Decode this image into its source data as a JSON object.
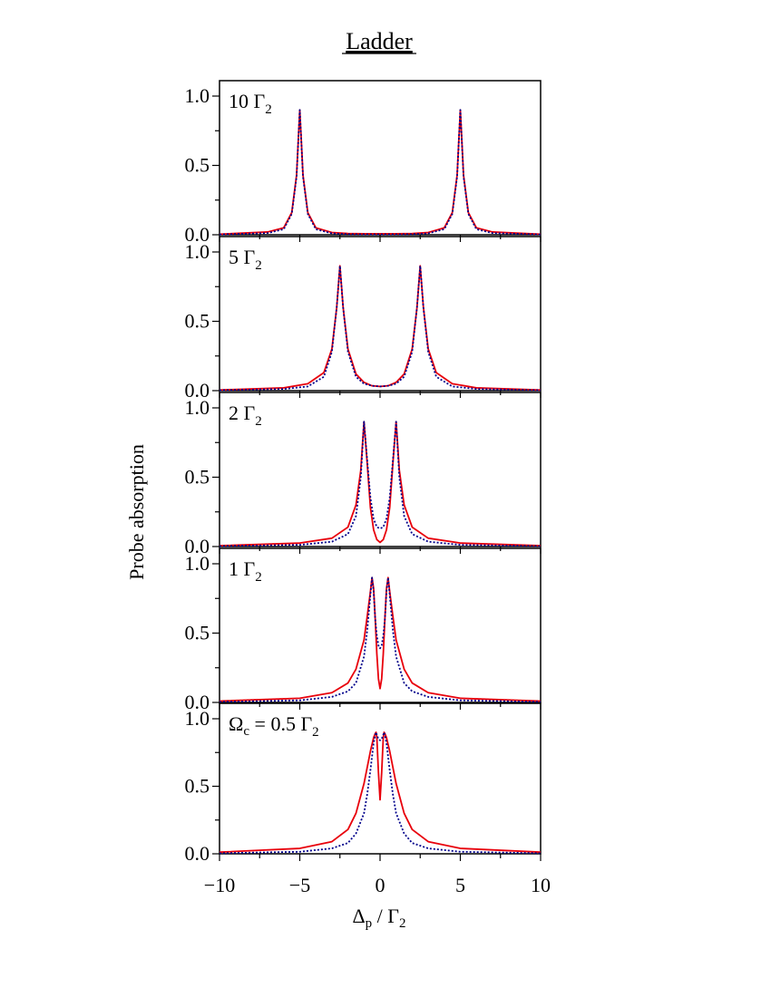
{
  "figure": {
    "title": "Ladder",
    "xlabel_main": "Δ",
    "xlabel_sub": "p",
    "xlabel_rest": " / Γ",
    "xlabel_sub2": "2",
    "ylabel": "Probe absorption"
  },
  "chart_data": {
    "type": "line",
    "title": "Ladder",
    "xlabel": "Δp / Γ2",
    "ylabel": "Probe absorption",
    "xlim": [
      -10,
      10
    ],
    "ylim": [
      0,
      1.0
    ],
    "x_ticks": [
      -10,
      -5,
      0,
      5,
      10
    ],
    "x_tick_labels": [
      "−10",
      "−5",
      "0",
      "5",
      "10"
    ],
    "y_ticks": [
      0.0,
      0.5,
      1.0
    ],
    "y_tick_labels": [
      "0.0",
      "0.5",
      "1.0"
    ],
    "grid": false,
    "series_styles": [
      {
        "color": "#e8000b",
        "style": "solid"
      },
      {
        "color": "#00008b",
        "style": "dotted"
      }
    ],
    "panels": [
      {
        "label_prefix": "",
        "label_value": "10 Γ",
        "label_sub": "2",
        "omega_c": 10,
        "series": [
          {
            "x": [
              -10,
              -7,
              -6,
              -5.5,
              -5.2,
              -5,
              -4.8,
              -4.5,
              -4,
              -3,
              -2,
              -1,
              0,
              1,
              2,
              3,
              4,
              4.5,
              4.8,
              5,
              5.2,
              5.5,
              6,
              7,
              10
            ],
            "y": [
              0.004,
              0.02,
              0.05,
              0.16,
              0.43,
              0.9,
              0.43,
              0.16,
              0.05,
              0.016,
              0.009,
              0.007,
              0.007,
              0.007,
              0.009,
              0.016,
              0.05,
              0.16,
              0.43,
              0.9,
              0.43,
              0.16,
              0.05,
              0.02,
              0.004
            ]
          },
          {
            "x": [
              -10,
              -7,
              -6,
              -5.5,
              -5.2,
              -5,
              -4.8,
              -4.5,
              -4,
              -3,
              -2,
              -1,
              0,
              1,
              2,
              3,
              4,
              4.5,
              4.8,
              5,
              5.2,
              5.5,
              6,
              7,
              10
            ],
            "y": [
              0.002,
              0.012,
              0.04,
              0.15,
              0.42,
              0.9,
              0.42,
              0.15,
              0.04,
              0.01,
              0.004,
              0.003,
              0.003,
              0.003,
              0.004,
              0.01,
              0.04,
              0.15,
              0.42,
              0.9,
              0.42,
              0.15,
              0.04,
              0.012,
              0.002
            ]
          }
        ]
      },
      {
        "label_prefix": "",
        "label_value": "5 Γ",
        "label_sub": "2",
        "omega_c": 5,
        "series": [
          {
            "x": [
              -10,
              -6,
              -4.5,
              -3.5,
              -3,
              -2.7,
              -2.5,
              -2.3,
              -2,
              -1.5,
              -1,
              -0.5,
              0,
              0.5,
              1,
              1.5,
              2,
              2.3,
              2.5,
              2.7,
              3,
              3.5,
              4.5,
              6,
              10
            ],
            "y": [
              0.005,
              0.02,
              0.05,
              0.13,
              0.3,
              0.6,
              0.9,
              0.6,
              0.3,
              0.12,
              0.06,
              0.035,
              0.03,
              0.035,
              0.06,
              0.12,
              0.3,
              0.6,
              0.9,
              0.6,
              0.3,
              0.13,
              0.05,
              0.02,
              0.005
            ]
          },
          {
            "x": [
              -10,
              -6,
              -4.5,
              -3.5,
              -3,
              -2.7,
              -2.5,
              -2.3,
              -2,
              -1.5,
              -1,
              -0.5,
              0,
              0.5,
              1,
              1.5,
              2,
              2.3,
              2.5,
              2.7,
              3,
              3.5,
              4.5,
              6,
              10
            ],
            "y": [
              0.003,
              0.012,
              0.03,
              0.1,
              0.28,
              0.6,
              0.9,
              0.6,
              0.28,
              0.1,
              0.05,
              0.035,
              0.03,
              0.035,
              0.05,
              0.1,
              0.28,
              0.6,
              0.9,
              0.6,
              0.28,
              0.1,
              0.03,
              0.012,
              0.003
            ]
          }
        ]
      },
      {
        "label_prefix": "",
        "label_value": "2 Γ",
        "label_sub": "2",
        "omega_c": 2,
        "series": [
          {
            "x": [
              -10,
              -5,
              -3,
              -2,
              -1.5,
              -1.2,
              -1,
              -0.8,
              -0.6,
              -0.4,
              -0.2,
              0,
              0.2,
              0.4,
              0.6,
              0.8,
              1,
              1.2,
              1.5,
              2,
              3,
              5,
              10
            ],
            "y": [
              0.006,
              0.025,
              0.06,
              0.14,
              0.3,
              0.55,
              0.9,
              0.6,
              0.28,
              0.12,
              0.05,
              0.03,
              0.05,
              0.12,
              0.28,
              0.6,
              0.9,
              0.55,
              0.3,
              0.14,
              0.06,
              0.025,
              0.006
            ]
          },
          {
            "x": [
              -10,
              -5,
              -3,
              -2,
              -1.5,
              -1.2,
              -1,
              -0.8,
              -0.6,
              -0.4,
              -0.2,
              0,
              0.2,
              0.4,
              0.6,
              0.8,
              1,
              1.2,
              1.5,
              2,
              3,
              5,
              10
            ],
            "y": [
              0.003,
              0.012,
              0.035,
              0.09,
              0.22,
              0.5,
              0.9,
              0.62,
              0.35,
              0.2,
              0.14,
              0.13,
              0.14,
              0.2,
              0.35,
              0.62,
              0.9,
              0.5,
              0.22,
              0.09,
              0.035,
              0.012,
              0.003
            ]
          }
        ]
      },
      {
        "label_prefix": "",
        "label_value": "1 Γ",
        "label_sub": "2",
        "omega_c": 1,
        "series": [
          {
            "x": [
              -10,
              -5,
              -3,
              -2,
              -1.5,
              -1,
              -0.8,
              -0.6,
              -0.5,
              -0.4,
              -0.3,
              -0.2,
              -0.1,
              0,
              0.1,
              0.2,
              0.3,
              0.4,
              0.5,
              0.6,
              0.8,
              1,
              1.5,
              2,
              3,
              5,
              10
            ],
            "y": [
              0.01,
              0.03,
              0.07,
              0.14,
              0.24,
              0.45,
              0.62,
              0.8,
              0.9,
              0.82,
              0.6,
              0.35,
              0.17,
              0.1,
              0.17,
              0.35,
              0.6,
              0.82,
              0.9,
              0.8,
              0.62,
              0.45,
              0.24,
              0.14,
              0.07,
              0.03,
              0.01
            ]
          },
          {
            "x": [
              -10,
              -5,
              -3,
              -2,
              -1.5,
              -1,
              -0.8,
              -0.6,
              -0.5,
              -0.4,
              -0.3,
              -0.2,
              -0.1,
              0,
              0.1,
              0.2,
              0.3,
              0.4,
              0.5,
              0.6,
              0.8,
              1,
              1.5,
              2,
              3,
              5,
              10
            ],
            "y": [
              0.004,
              0.015,
              0.04,
              0.08,
              0.14,
              0.33,
              0.52,
              0.78,
              0.9,
              0.8,
              0.6,
              0.48,
              0.41,
              0.39,
              0.41,
              0.48,
              0.6,
              0.8,
              0.9,
              0.78,
              0.52,
              0.33,
              0.14,
              0.08,
              0.04,
              0.015,
              0.004
            ]
          }
        ]
      },
      {
        "label_prefix": "Ωc = ",
        "label_value": "0.5 Γ",
        "label_sub": "2",
        "omega_c": 0.5,
        "series": [
          {
            "x": [
              -10,
              -5,
              -3,
              -2,
              -1.5,
              -1,
              -0.8,
              -0.6,
              -0.4,
              -0.3,
              -0.25,
              -0.2,
              -0.1,
              0,
              0.1,
              0.2,
              0.25,
              0.3,
              0.4,
              0.6,
              0.8,
              1,
              1.5,
              2,
              3,
              5,
              10
            ],
            "y": [
              0.012,
              0.04,
              0.09,
              0.18,
              0.3,
              0.52,
              0.64,
              0.76,
              0.86,
              0.89,
              0.9,
              0.86,
              0.6,
              0.4,
              0.6,
              0.86,
              0.9,
              0.89,
              0.86,
              0.76,
              0.64,
              0.52,
              0.3,
              0.18,
              0.09,
              0.04,
              0.012
            ]
          },
          {
            "x": [
              -10,
              -5,
              -3,
              -2,
              -1.5,
              -1,
              -0.8,
              -0.6,
              -0.4,
              -0.3,
              -0.25,
              -0.2,
              -0.1,
              0,
              0.1,
              0.2,
              0.25,
              0.3,
              0.4,
              0.6,
              0.8,
              1,
              1.5,
              2,
              3,
              5,
              10
            ],
            "y": [
              0.004,
              0.015,
              0.04,
              0.08,
              0.15,
              0.3,
              0.44,
              0.62,
              0.82,
              0.88,
              0.9,
              0.88,
              0.85,
              0.84,
              0.85,
              0.88,
              0.9,
              0.88,
              0.82,
              0.62,
              0.44,
              0.3,
              0.15,
              0.08,
              0.04,
              0.015,
              0.004
            ]
          }
        ]
      }
    ]
  }
}
